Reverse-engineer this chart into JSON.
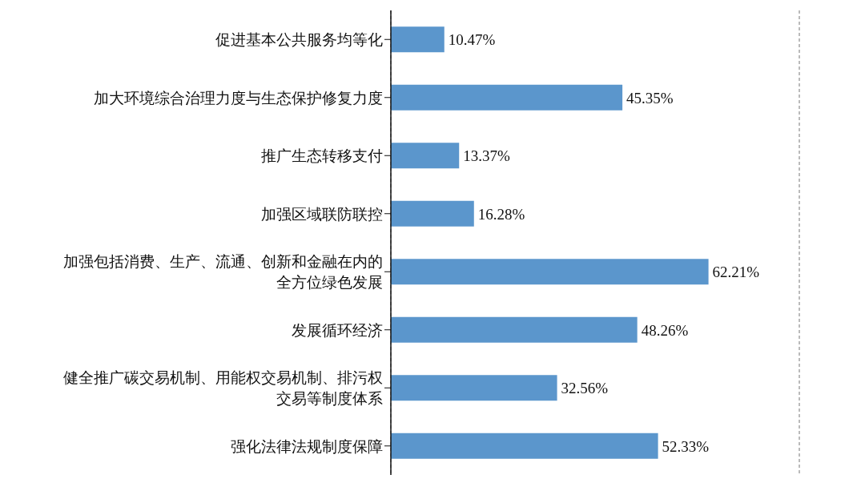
{
  "chart_data": {
    "type": "bar",
    "orientation": "horizontal",
    "categories": [
      "促进基本公共服务均等化",
      "加大环境综合治理力度与生态保护修复力度",
      "推广生态转移支付",
      "加强区域联防联控",
      "加强包括消费、生产、流通、创新和金融在内的全方位绿色发展",
      "发展循环经济",
      "健全推广碳交易机制、用能权交易机制、排污权交易等制度体系",
      "强化法律法规制度保障"
    ],
    "values": [
      10.47,
      45.35,
      13.37,
      16.28,
      62.21,
      48.26,
      32.56,
      52.33
    ],
    "value_labels": [
      "10.47%",
      "45.35%",
      "13.37%",
      "16.28%",
      "62.21%",
      "48.26%",
      "32.56%",
      "52.33%"
    ],
    "color": "#5b96cc",
    "xlim": [
      0,
      80
    ],
    "grid": "x",
    "tick_labels": "y"
  }
}
